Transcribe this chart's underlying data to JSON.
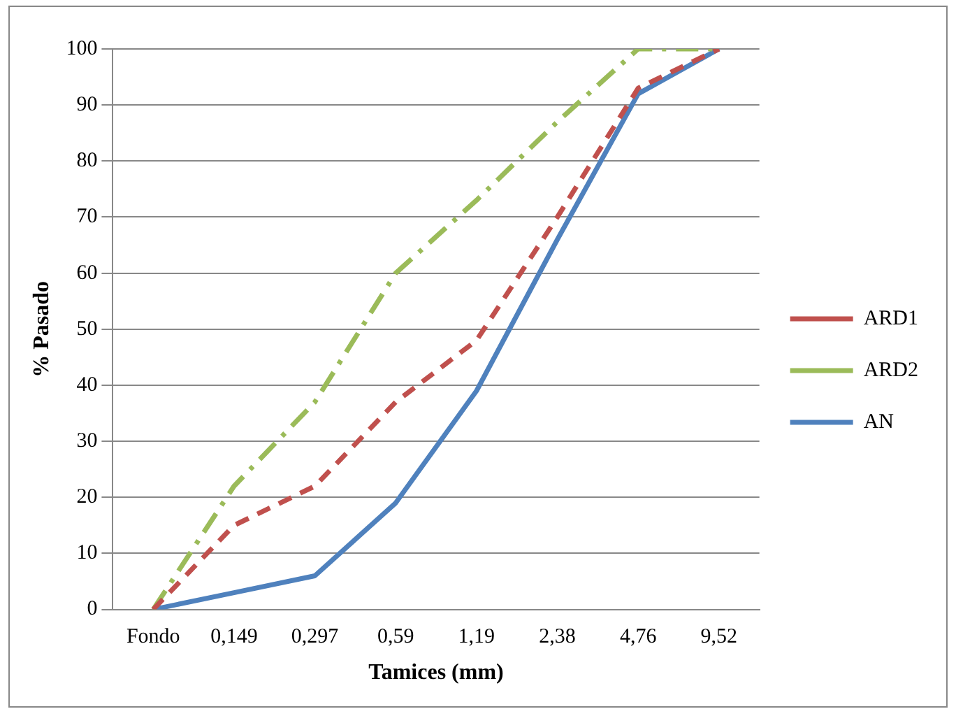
{
  "chart_data": {
    "type": "line",
    "xlabel": "Tamices (mm)",
    "ylabel": "% Pasado",
    "categories": [
      "Fondo",
      "0,149",
      "0,297",
      "0,59",
      "1,19",
      "2,38",
      "4,76",
      "9,52"
    ],
    "series": [
      {
        "name": "ARD1",
        "color": "#c0504d",
        "line_style": "dashed",
        "values": [
          0,
          15,
          22,
          37,
          48,
          70,
          93,
          100
        ]
      },
      {
        "name": "ARD2",
        "color": "#9bbb59",
        "line_style": "dashdot",
        "values": [
          0,
          22,
          37,
          60,
          73,
          87,
          100,
          100
        ]
      },
      {
        "name": "AN",
        "color": "#4f81bd",
        "line_style": "solid",
        "values": [
          0,
          3,
          6,
          19,
          39,
          66,
          92,
          100
        ]
      }
    ],
    "ylim": [
      0,
      100
    ],
    "yticks": [
      0,
      10,
      20,
      30,
      40,
      50,
      60,
      70,
      80,
      90,
      100
    ],
    "grid": "y",
    "legend": "right",
    "marker": "none"
  }
}
